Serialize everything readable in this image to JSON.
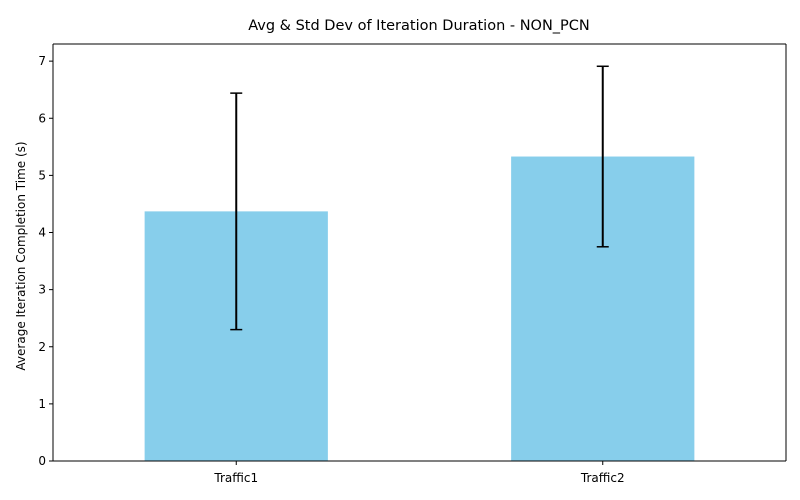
{
  "chart_data": {
    "type": "bar",
    "title": "Avg & Std Dev of Iteration Duration - NON_PCN",
    "xlabel": "",
    "ylabel": "Average Iteration Completion Time (s)",
    "categories": [
      "Traffic1",
      "Traffic2"
    ],
    "values": [
      4.37,
      5.33
    ],
    "errors": [
      2.07,
      1.58
    ],
    "ylim": [
      0,
      7.3
    ],
    "yticks": [
      0,
      1,
      2,
      3,
      4,
      5,
      6,
      7
    ],
    "grid": false,
    "bar_color": "#87ceeb",
    "error_color": "#000000"
  }
}
